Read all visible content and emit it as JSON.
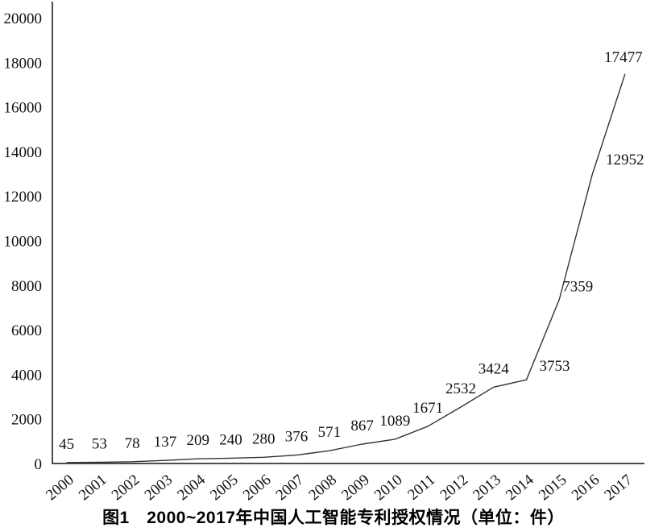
{
  "figure": {
    "caption": "图1　2000~2017年中国人工智能专利授权情况（单位：件）"
  },
  "chart_data": {
    "type": "line",
    "title": "图1　2000~2017年中国人工智能专利授权情况（单位：件）",
    "categories": [
      "2000",
      "2001",
      "2002",
      "2003",
      "2004",
      "2005",
      "2006",
      "2007",
      "2008",
      "2009",
      "2010",
      "2011",
      "2012",
      "2013",
      "2014",
      "2015",
      "2016",
      "2017"
    ],
    "values": [
      45,
      53,
      78,
      137,
      209,
      240,
      280,
      376,
      571,
      867,
      1089,
      1671,
      2532,
      3424,
      3753,
      7359,
      12952,
      17477
    ],
    "xlabel": "",
    "ylabel": "",
    "ylim": [
      0,
      20000
    ],
    "y_ticks": [
      0,
      2000,
      4000,
      6000,
      8000,
      10000,
      12000,
      14000,
      16000,
      18000,
      20000
    ],
    "grid": false,
    "legend": false,
    "show_point_labels": true,
    "line_color": "#333333",
    "axis_color": "#4d4d4d",
    "text_color": "#111111"
  }
}
